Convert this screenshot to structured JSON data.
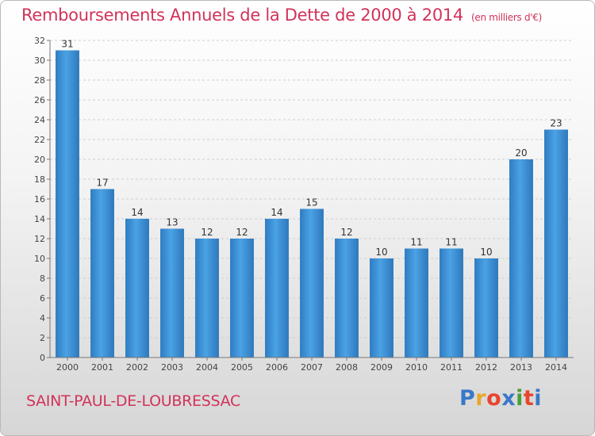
{
  "title": "Remboursements Annuels de la Dette de 2000 à 2014",
  "unit": "(en milliers d'€)",
  "commune": "SAINT-PAUL-DE-LOUBRESSAC",
  "logo": {
    "letters": [
      "P",
      "r",
      "o",
      "x",
      "i",
      "t",
      "i"
    ],
    "colors": [
      "#3a78c8",
      "#e8a72a",
      "#e8452c",
      "#3a78c8",
      "#4a9e3a",
      "#e8452c",
      "#3a78c8"
    ]
  },
  "colors": {
    "bar": "#3d94d8",
    "bar_dark": "#2a70b4",
    "title": "#d2325a"
  },
  "chart_data": {
    "type": "bar",
    "categories": [
      "2000",
      "2001",
      "2002",
      "2003",
      "2004",
      "2005",
      "2006",
      "2007",
      "2008",
      "2009",
      "2010",
      "2011",
      "2012",
      "2013",
      "2014"
    ],
    "values": [
      31,
      17,
      14,
      13,
      12,
      12,
      14,
      15,
      12,
      10,
      11,
      11,
      10,
      20,
      23
    ],
    "ylim": [
      0,
      32
    ],
    "yticks": [
      0,
      2,
      4,
      6,
      8,
      10,
      12,
      14,
      16,
      18,
      20,
      22,
      24,
      26,
      28,
      30,
      32
    ],
    "grid": true,
    "xlabel": "",
    "ylabel": ""
  }
}
